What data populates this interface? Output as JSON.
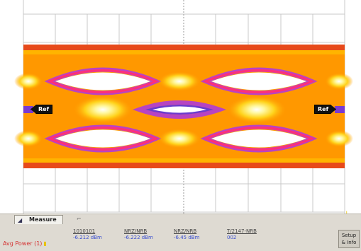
{
  "display": {
    "left_marker": "Ref",
    "right_marker": "Ref",
    "trigger_indicator": "↓"
  },
  "measure_panel": {
    "tab_label": "Measure",
    "row_label": "Avg Power (1)",
    "columns": [
      {
        "header": "1010101",
        "value": "-6.212 dBm"
      },
      {
        "header": "NRZ/NRB",
        "value": "-6.222 dBm"
      },
      {
        "header": "NRZ/NRB",
        "value": "-6.45 dBm"
      },
      {
        "header": "T/2147-NRB",
        "value": "002"
      }
    ],
    "setup_button": "Setup & Info"
  }
}
